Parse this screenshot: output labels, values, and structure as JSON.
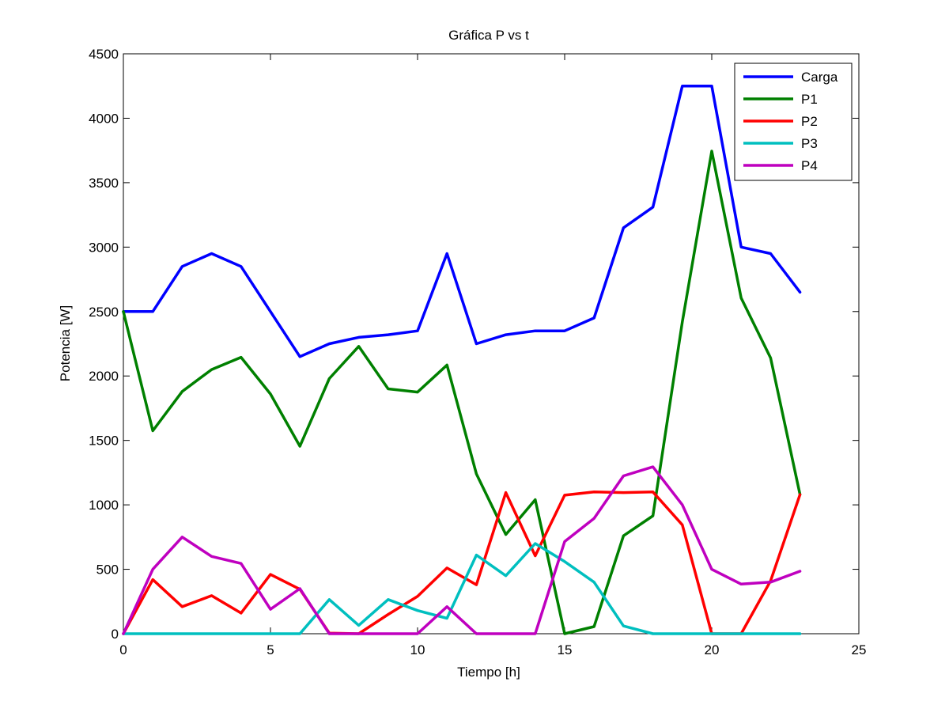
{
  "chart_data": {
    "type": "line",
    "title": "Gráfica P vs t",
    "xlabel": "Tiempo [h]",
    "ylabel": "Potencia [W]",
    "xlim": [
      0,
      25
    ],
    "ylim": [
      0,
      4500
    ],
    "xticks": [
      0,
      5,
      10,
      15,
      20,
      25
    ],
    "yticks": [
      0,
      500,
      1000,
      1500,
      2000,
      2500,
      3000,
      3500,
      4000,
      4500
    ],
    "grid": false,
    "legend_position": "top-right",
    "x": [
      0,
      1,
      2,
      3,
      4,
      5,
      6,
      7,
      8,
      9,
      10,
      11,
      12,
      13,
      14,
      15,
      16,
      17,
      18,
      19,
      20,
      21,
      22,
      23
    ],
    "series": [
      {
        "name": "Carga",
        "color": "#0000ff",
        "values": [
          2500,
          2500,
          2850,
          2950,
          2850,
          2500,
          2150,
          2250,
          2300,
          2320,
          2350,
          2950,
          2250,
          2320,
          2350,
          2350,
          2450,
          3150,
          3310,
          4250,
          4250,
          3000,
          2950,
          2650
        ]
      },
      {
        "name": "P1",
        "color": "#008000",
        "values": [
          2500,
          1575,
          1880,
          2050,
          2145,
          1860,
          1455,
          1980,
          2230,
          1900,
          1875,
          2085,
          1240,
          770,
          1040,
          0,
          55,
          760,
          915,
          2420,
          3745,
          2605,
          2140,
          1080
        ]
      },
      {
        "name": "P2",
        "color": "#ff0000",
        "values": [
          0,
          420,
          210,
          295,
          160,
          460,
          345,
          5,
          0,
          150,
          290,
          510,
          380,
          1095,
          605,
          1075,
          1100,
          1095,
          1100,
          845,
          0,
          0,
          410,
          1080
        ]
      },
      {
        "name": "P3",
        "color": "#00bfbf",
        "values": [
          0,
          0,
          0,
          0,
          0,
          0,
          0,
          265,
          65,
          265,
          180,
          120,
          610,
          450,
          700,
          560,
          400,
          60,
          0,
          0,
          0,
          0,
          0,
          0
        ]
      },
      {
        "name": "P4",
        "color": "#bf00bf",
        "values": [
          0,
          500,
          750,
          600,
          545,
          190,
          350,
          0,
          0,
          0,
          0,
          210,
          0,
          0,
          0,
          715,
          895,
          1225,
          1295,
          1000,
          500,
          385,
          400,
          485
        ]
      }
    ]
  }
}
